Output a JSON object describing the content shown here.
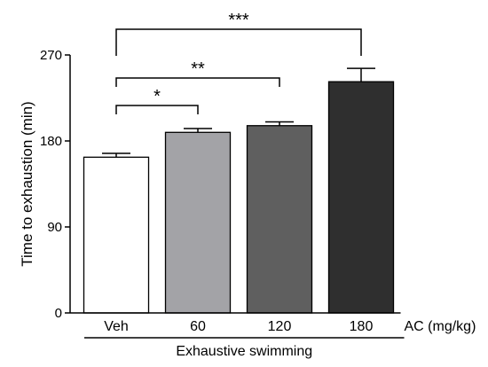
{
  "chart_data": {
    "type": "bar",
    "categories": [
      "Veh",
      "60",
      "120",
      "180"
    ],
    "values": [
      163,
      189,
      196,
      242
    ],
    "errors": [
      4,
      4,
      4,
      14
    ],
    "bar_colors": [
      "#ffffff",
      "#a3a3a7",
      "#5f5f5f",
      "#2f2f2f"
    ],
    "ylabel": "Time to exhaustion (min)",
    "ylim": [
      0,
      270
    ],
    "yticks": [
      0,
      90,
      180,
      270
    ],
    "unit_label": "AC (mg/kg)",
    "group_label": "Exhaustive swimming",
    "significance": [
      {
        "from": 0,
        "to": 1,
        "label": "*"
      },
      {
        "from": 0,
        "to": 2,
        "label": "**"
      },
      {
        "from": 0,
        "to": 3,
        "label": "***"
      }
    ],
    "grid": false,
    "legend": "none"
  }
}
